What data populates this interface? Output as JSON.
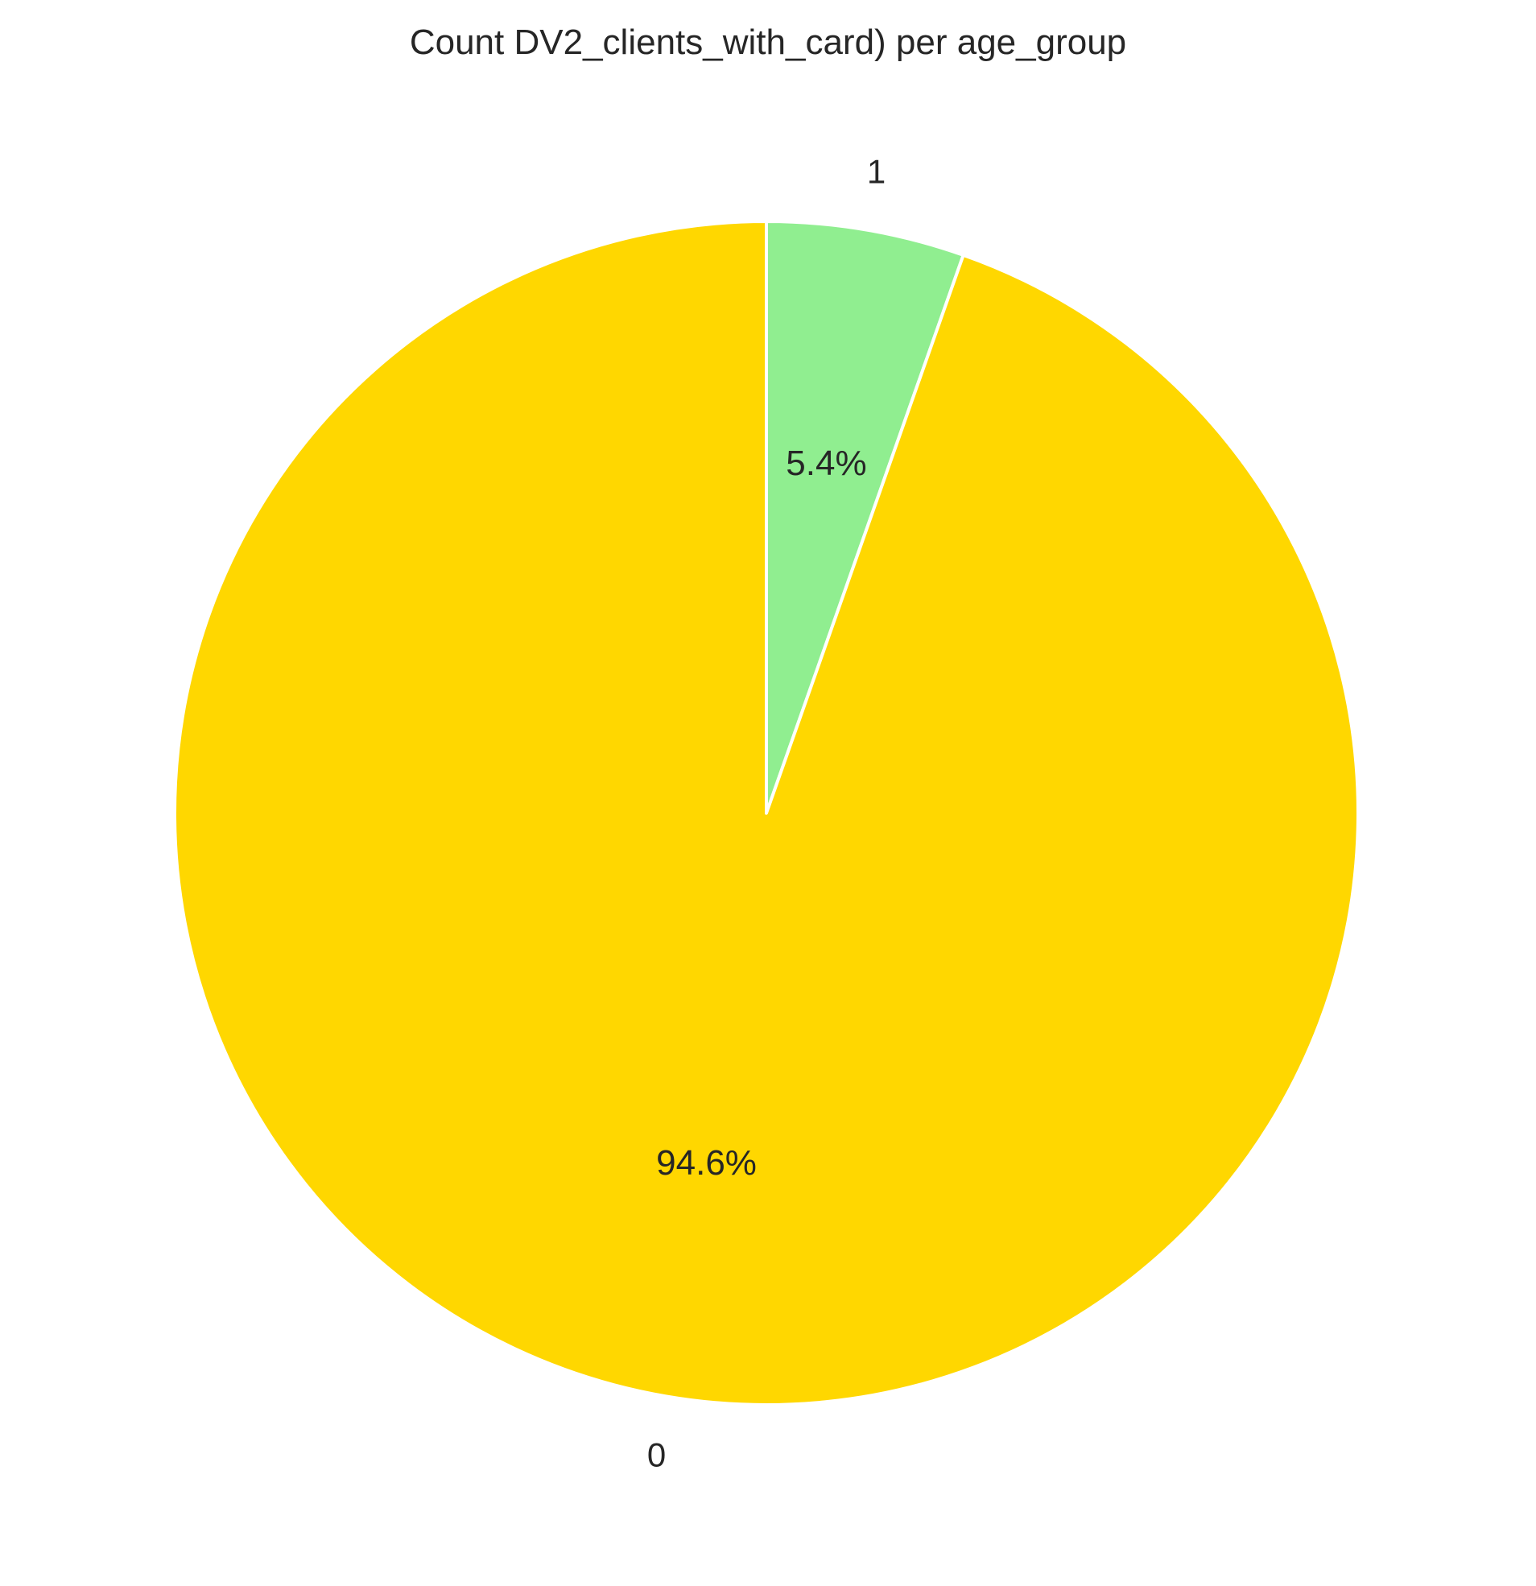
{
  "chart_data": {
    "type": "pie",
    "title": "Count DV2_clients_with_card) per age_group",
    "slices": [
      {
        "label": "1",
        "value": 5.4,
        "pct_label": "5.4%",
        "color": "#90EE90"
      },
      {
        "label": "0",
        "value": 94.6,
        "pct_label": "94.6%",
        "color": "#FFD700"
      }
    ],
    "start_angle_deg": 90,
    "direction": "clockwise",
    "wedge_edge_color": "#ffffff"
  }
}
